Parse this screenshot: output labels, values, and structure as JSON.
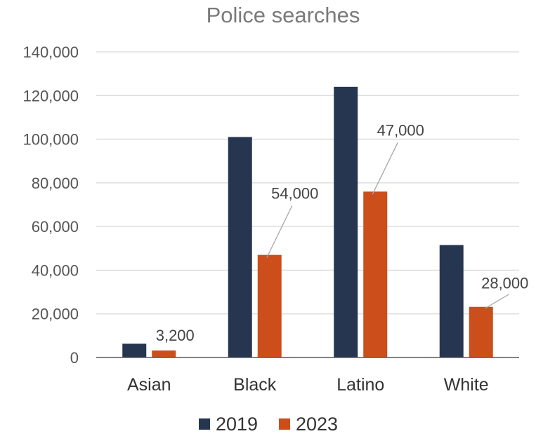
{
  "chart_data": {
    "type": "bar",
    "title": "Police searches",
    "xlabel": "",
    "ylabel": "",
    "categories": [
      "Asian",
      "Black",
      "Latino",
      "White"
    ],
    "series": [
      {
        "name": "2019",
        "values": [
          6300,
          101000,
          124000,
          51500
        ],
        "color": "#263650"
      },
      {
        "name": "2023",
        "values": [
          3200,
          47000,
          76000,
          23200
        ],
        "color": "#cb4e1b"
      }
    ],
    "data_labels": [
      {
        "category": "Asian",
        "text": "3,200"
      },
      {
        "category": "Black",
        "text": "54,000"
      },
      {
        "category": "Latino",
        "text": "47,000"
      },
      {
        "category": "White",
        "text": "28,000"
      }
    ],
    "ylim": [
      0,
      140000
    ],
    "yticks": [
      0,
      20000,
      40000,
      60000,
      80000,
      100000,
      120000,
      140000
    ],
    "ytick_labels": [
      "0",
      "20,000",
      "40,000",
      "60,000",
      "80,000",
      "100,000",
      "120,000",
      "140,000"
    ],
    "grid": true,
    "legend_position": "bottom"
  }
}
